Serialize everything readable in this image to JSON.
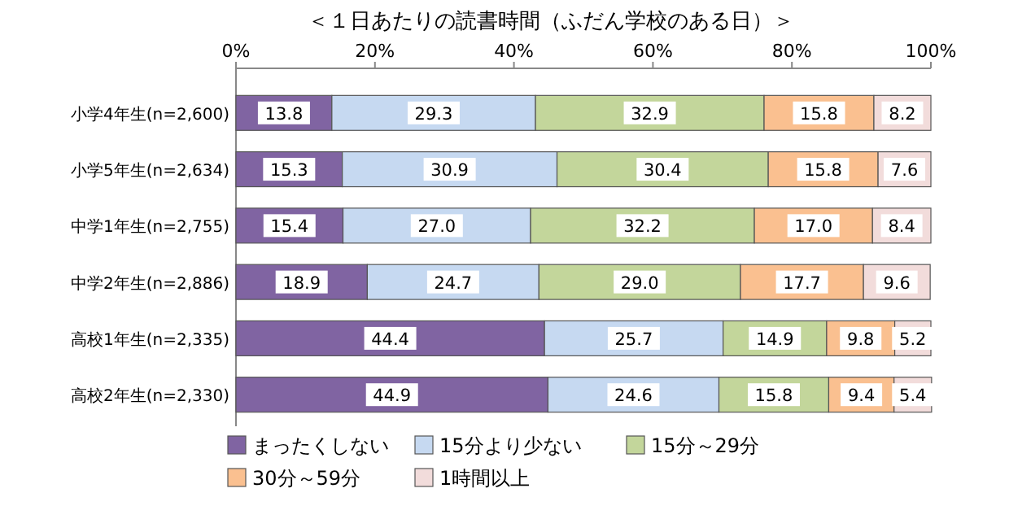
{
  "chart_data": {
    "type": "bar",
    "orientation": "horizontal",
    "stacked": true,
    "title": "＜１日あたりの読書時間（ふだん学校のある日）＞",
    "categories": [
      "小学4年生(n=2,600)",
      "小学5年生(n=2,634)",
      "中学1年生(n=2,755)",
      "中学2年生(n=2,886)",
      "高校1年生(n=2,335)",
      "高校2年生(n=2,330)"
    ],
    "series": [
      {
        "name": "まったくしない",
        "color": "#8064a2",
        "values": [
          13.8,
          15.3,
          15.4,
          18.9,
          44.4,
          44.9
        ],
        "value_labels": [
          "13.8",
          "15.3",
          "15.4",
          "18.9",
          "44.4",
          "44.9"
        ]
      },
      {
        "name": "15分より少ない",
        "color": "#c6d9f1",
        "values": [
          29.3,
          30.9,
          27.0,
          24.7,
          25.7,
          24.6
        ],
        "value_labels": [
          "29.3",
          "30.9",
          "27.0",
          "24.7",
          "25.7",
          "24.6"
        ]
      },
      {
        "name": "15分～29分",
        "color": "#c3d69b",
        "values": [
          32.9,
          30.4,
          32.2,
          29.0,
          14.9,
          15.8
        ],
        "value_labels": [
          "32.9",
          "30.4",
          "32.2",
          "29.0",
          "14.9",
          "15.8"
        ]
      },
      {
        "name": "30分～59分",
        "color": "#fac090",
        "values": [
          15.8,
          15.8,
          17.0,
          17.7,
          9.8,
          9.4
        ],
        "value_labels": [
          "15.8",
          "15.8",
          "17.0",
          "17.7",
          "9.8",
          "9.4"
        ]
      },
      {
        "name": "1時間以上",
        "color": "#f2dcdb",
        "values": [
          8.2,
          7.6,
          8.4,
          9.6,
          5.2,
          5.4
        ],
        "value_labels": [
          "8.2",
          "7.6",
          "8.4",
          "9.6",
          "5.2",
          "5.4"
        ]
      }
    ],
    "xlim": [
      0,
      100
    ],
    "xticks": [
      {
        "value": 0,
        "label": "0%"
      },
      {
        "value": 20,
        "label": "20%"
      },
      {
        "value": 40,
        "label": "40%"
      },
      {
        "value": 60,
        "label": "60%"
      },
      {
        "value": 80,
        "label": "80%"
      },
      {
        "value": 100,
        "label": "100%"
      }
    ],
    "legend": "bottom"
  }
}
